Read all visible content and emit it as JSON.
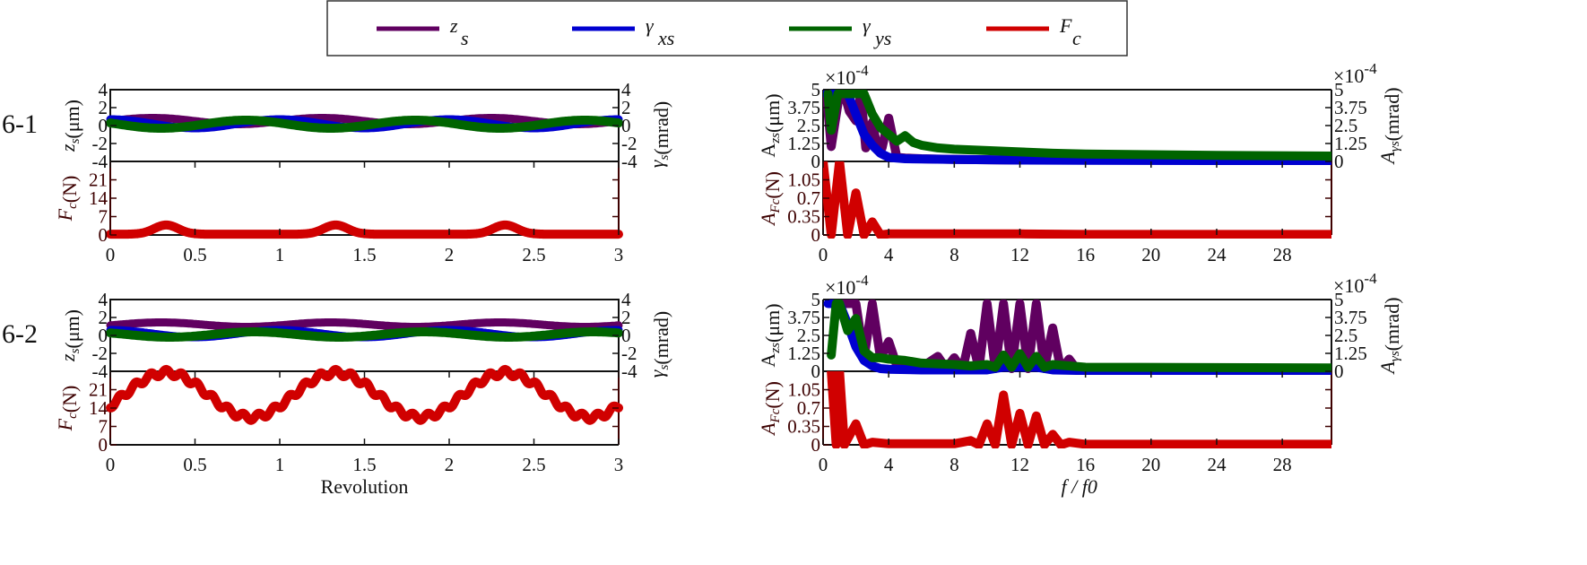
{
  "legend": {
    "items": [
      {
        "name": "z",
        "sub": "s",
        "color": "#600060"
      },
      {
        "name": "γ",
        "sub": "xs",
        "color": "#0000d0"
      },
      {
        "name": "γ",
        "sub": "ys",
        "color": "#006400"
      },
      {
        "name": "F",
        "sub": "c",
        "color": "#d00000"
      }
    ]
  },
  "rows": [
    {
      "label": "6-1"
    },
    {
      "label": "6-2"
    }
  ],
  "colors": {
    "zs": "#600060",
    "gxs": "#0000d0",
    "gys": "#006400",
    "fc": "#d00000",
    "fc_axis": "#3d0000",
    "axis": "#111111"
  },
  "chart_data": [
    {
      "id": "6-1-time-upper",
      "type": "line",
      "xlabel": "",
      "ylabel": "z_s (μm)",
      "ylabel_right": "γ_s (mrad)",
      "xlim": [
        0,
        3
      ],
      "ylim": [
        -4,
        4
      ],
      "yticks": [
        "4",
        "2",
        "0",
        "-2",
        "-4"
      ],
      "yticks_right": [
        "4",
        "2",
        "0",
        "-2",
        "-4"
      ],
      "series": [
        {
          "name": "z_s",
          "description": "sinusoid, period 1 rev",
          "mean": 0.5,
          "amp": 0.35,
          "phase_peak_x": 0.25
        },
        {
          "name": "γ_xs",
          "mean": 0.2,
          "amp": 0.5,
          "phase_peak_x": 0.0
        },
        {
          "name": "γ_ys",
          "mean": 0.15,
          "amp": 0.45,
          "phase_peak_x": 0.8
        }
      ]
    },
    {
      "id": "6-1-time-lower",
      "type": "line",
      "xlabel": "Revolution",
      "ylabel": "F_c (N)",
      "xlim": [
        0,
        3
      ],
      "ylim": [
        0,
        28
      ],
      "yticks": [
        "21",
        "14",
        "7",
        "0"
      ],
      "xticks": [
        "0",
        "0.5",
        "1",
        "1.5",
        "2",
        "2.5",
        "3"
      ],
      "series": [
        {
          "name": "F_c",
          "description": "small bumps peaking ~3.5 N at 0.33, 1.33, 2.33 rev; ~0 elsewhere",
          "peak": 3.5,
          "peaks_at": [
            0.33,
            1.33,
            2.33
          ]
        }
      ]
    },
    {
      "id": "6-1-freq-upper",
      "type": "line",
      "ylabel": "A_zs (μm)",
      "ylabel_right": "A_γs (mrad)",
      "scale": "×10^-4",
      "scale_right": "×10^-4",
      "xlim": [
        0,
        31
      ],
      "ylim": [
        0,
        5
      ],
      "yticks": [
        "5",
        "3.75",
        "2.5",
        "1.25",
        "0"
      ],
      "yticks_right": [
        "5",
        "3.75",
        "2.5",
        "1.25",
        "0"
      ],
      "series": [
        {
          "name": "A_zs",
          "x": [
            0.2,
            0.5,
            1,
            1.3,
            1.6,
            2,
            2.3,
            2.6,
            3,
            3.3,
            3.6,
            4,
            4.5,
            5,
            6,
            8,
            12,
            16,
            31
          ],
          "y": [
            5,
            1.1,
            5,
            5,
            3.7,
            3,
            5,
            1,
            2.9,
            1,
            1,
            3.2,
            0.3,
            0.25,
            0.2,
            0.15,
            0.1,
            0.1,
            0.1
          ]
        },
        {
          "name": "A_γxs",
          "x": [
            0.2,
            1,
            1.5,
            2,
            2.5,
            3,
            3.5,
            4,
            5,
            8,
            12,
            16,
            31
          ],
          "y": [
            5,
            5,
            5,
            3.5,
            2,
            1.2,
            0.6,
            0.3,
            0.2,
            0.15,
            0.1,
            0.08,
            0.05
          ]
        },
        {
          "name": "A_γys",
          "x": [
            0.3,
            0.5,
            0.9,
            1.3,
            2.5,
            3,
            3.5,
            4,
            4.5,
            5,
            5.5,
            6,
            7,
            8,
            10,
            12,
            14,
            16,
            20,
            24,
            31
          ],
          "y": [
            5,
            2.3,
            5,
            5,
            5,
            3.5,
            2.5,
            2,
            1.5,
            1.9,
            1.4,
            1.2,
            1,
            0.9,
            0.8,
            0.7,
            0.6,
            0.55,
            0.5,
            0.45,
            0.4
          ]
        }
      ]
    },
    {
      "id": "6-1-freq-lower",
      "type": "line",
      "xlabel": "",
      "ylabel": "A_Fc (N)",
      "xlim": [
        0,
        31
      ],
      "ylim": [
        0,
        1.4
      ],
      "yticks": [
        "1.05",
        "0.7",
        "0.35",
        "0"
      ],
      "xticks": [
        "0",
        "4",
        "8",
        "12",
        "16",
        "20",
        "24",
        "28"
      ],
      "series": [
        {
          "name": "A_Fc",
          "x": [
            0,
            0.5,
            1,
            1.5,
            2,
            2.5,
            3,
            3.5,
            4,
            6,
            8,
            12,
            16,
            31
          ],
          "y": [
            1.4,
            0,
            1.4,
            0,
            0.8,
            0,
            0.25,
            0,
            0.02,
            0.02,
            0.02,
            0.02,
            0.01,
            0.01
          ]
        }
      ]
    },
    {
      "id": "6-2-time-upper",
      "type": "line",
      "ylabel": "z_s (μm)",
      "ylabel_right": "γ_s (mrad)",
      "xlim": [
        0,
        3
      ],
      "ylim": [
        -4,
        4
      ],
      "yticks": [
        "4",
        "2",
        "0",
        "-2",
        "-4"
      ],
      "yticks_right": [
        "4",
        "2",
        "0",
        "-2",
        "-4"
      ],
      "series": [
        {
          "name": "z_s",
          "mean": 1.2,
          "amp": 0.25,
          "phase_peak_x": 0.3
        },
        {
          "name": "γ_xs",
          "mean": 0.2,
          "amp": 0.4,
          "phase_peak_x": 0.0
        },
        {
          "name": "γ_ys",
          "mean": 0.1,
          "amp": 0.3,
          "phase_peak_x": 0.85
        }
      ]
    },
    {
      "id": "6-2-time-lower",
      "type": "line",
      "xlabel": "Revolution",
      "ylabel": "F_c (N)",
      "xlim": [
        0,
        3
      ],
      "ylim": [
        0,
        28
      ],
      "yticks": [
        "21",
        "14",
        "7",
        "0"
      ],
      "xticks": [
        "0",
        "0.5",
        "1",
        "1.5",
        "2",
        "2.5",
        "3"
      ],
      "series": [
        {
          "name": "F_c",
          "description": "sinusoid mean ~19, amplitude ~8.5, peak at 0.33 rev, plus 11x ripple amplitude ~1.2",
          "mean": 19,
          "amp": 8.5,
          "ripple_amp": 1.2,
          "ripple_harmonic": 11
        }
      ]
    },
    {
      "id": "6-2-freq-upper",
      "type": "line",
      "ylabel": "A_zs (μm)",
      "ylabel_right": "A_γs (mrad)",
      "scale": "×10^-4",
      "scale_right": "×10^-4",
      "xlim": [
        0,
        31
      ],
      "ylim": [
        0,
        5
      ],
      "yticks": [
        "5",
        "3.75",
        "2.5",
        "1.25",
        "0"
      ],
      "yticks_right": [
        "5",
        "3.75",
        "2.5",
        "1.25",
        "0"
      ],
      "series": [
        {
          "name": "A_zs",
          "x": [
            1,
            1.5,
            2,
            2.5,
            3,
            3.5,
            4,
            4.5,
            5,
            6,
            7,
            7.5,
            8,
            8.5,
            9,
            9.5,
            10,
            10.5,
            11,
            11.5,
            12,
            12.5,
            13,
            13.5,
            14,
            14.5,
            15,
            15.5,
            16,
            21,
            31
          ],
          "y": [
            5,
            5,
            5,
            1,
            5,
            1,
            2.2,
            0.4,
            0.3,
            0.3,
            1.1,
            0.2,
            1,
            0.1,
            2.8,
            0.2,
            5,
            0.2,
            5,
            0.2,
            5,
            0.2,
            5,
            0.2,
            3.2,
            0.1,
            0.9,
            0.1,
            0.15,
            0.2,
            0.1
          ]
        },
        {
          "name": "A_γxs",
          "x": [
            0.3,
            1,
            1.5,
            2,
            2.5,
            3,
            3.5,
            4,
            6,
            8,
            10,
            11,
            12,
            13,
            14,
            16,
            31
          ],
          "y": [
            5,
            5,
            3.5,
            1.8,
            0.8,
            0.4,
            0.2,
            0.15,
            0.1,
            0.1,
            0.1,
            0.3,
            0.3,
            0.3,
            0.1,
            0.05,
            0.05
          ]
        },
        {
          "name": "A_γys",
          "x": [
            0.5,
            0.8,
            1,
            1.5,
            2,
            2.5,
            3,
            3.5,
            4,
            5,
            6,
            8,
            9,
            10,
            10.5,
            11,
            11.5,
            12,
            12.5,
            13,
            13.5,
            14,
            16,
            31
          ],
          "y": [
            1.2,
            5,
            5,
            3,
            3.9,
            1.5,
            1,
            1,
            0.9,
            0.8,
            0.6,
            0.5,
            0.4,
            0.5,
            0.3,
            1.2,
            0.3,
            1.3,
            0.3,
            1.1,
            0.3,
            0.5,
            0.3,
            0.25
          ]
        }
      ]
    },
    {
      "id": "6-2-freq-lower",
      "type": "line",
      "xlabel": "f/f0",
      "ylabel": "A_Fc (N)",
      "xlim": [
        0,
        31
      ],
      "ylim": [
        0,
        1.4
      ],
      "yticks": [
        "1.05",
        "0.7",
        "0.35",
        "0"
      ],
      "xticks": [
        "0",
        "4",
        "8",
        "12",
        "16",
        "20",
        "24",
        "28"
      ],
      "series": [
        {
          "name": "A_Fc",
          "x": [
            0.5,
            0.8,
            1,
            1.3,
            2,
            2.5,
            3,
            4,
            8,
            9,
            9.5,
            10,
            10.5,
            11,
            11.5,
            12,
            12.5,
            13,
            13.5,
            14,
            14.5,
            15,
            16,
            31
          ],
          "y": [
            1.4,
            0,
            1.4,
            0,
            0.4,
            0,
            0.05,
            0.02,
            0.02,
            0.08,
            0,
            0.4,
            0,
            0.95,
            0,
            0.6,
            0,
            0.55,
            0,
            0.2,
            0,
            0.05,
            0.01,
            0.01
          ]
        }
      ]
    }
  ],
  "labels": {
    "time_xlabel": "Revolution",
    "freq_xlabel": "f / f0",
    "scale": "×10",
    "scale_exp": "-4",
    "zs_label": "z",
    "zs_sub": "s",
    "zs_unit": "(μm)",
    "gs_label": "γ",
    "gs_sub": "s",
    "gs_unit": "(mrad)",
    "fc_label": "F",
    "fc_sub": "c",
    "fc_unit": "(N)",
    "azs_label": "A",
    "azs_sub": "zs",
    "azs_unit": "(μm)",
    "afc_label": "A",
    "afc_sub": "Fc",
    "afc_unit": "(N)",
    "ags_label": "A",
    "ags_sub": "γs",
    "ags_unit": "(mrad)"
  }
}
